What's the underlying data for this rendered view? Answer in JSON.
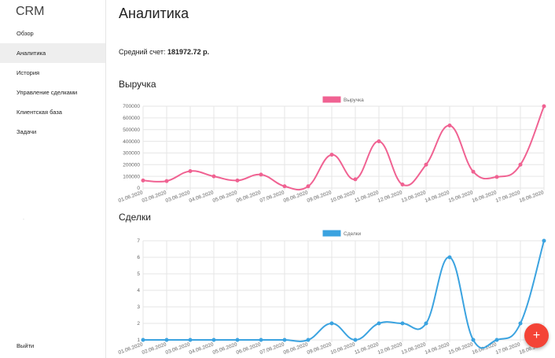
{
  "app": {
    "brand": "CRM"
  },
  "sidebar": {
    "items": [
      {
        "label": "Обзор",
        "active": false
      },
      {
        "label": "Аналитика",
        "active": true
      },
      {
        "label": "История",
        "active": false
      },
      {
        "label": "Управление сделками",
        "active": false
      },
      {
        "label": "Клиентская база",
        "active": false
      },
      {
        "label": "Задачи",
        "active": false
      }
    ],
    "logout_label": "Выйти"
  },
  "main": {
    "title": "Аналитика",
    "avg_label": "Средний счет:",
    "avg_value": "181972.72 р.",
    "revenue_title": "Выручка",
    "deals_title": "Сделки"
  },
  "fab": {
    "label": "+"
  },
  "colors": {
    "revenue": "#f06292",
    "deals": "#3ba3e0",
    "fab": "#f44336"
  },
  "chart_data": [
    {
      "type": "line",
      "categories": [
        "01.06.2020",
        "02.06.2020",
        "03.06.2020",
        "04.06.2020",
        "05.06.2020",
        "06.06.2020",
        "07.06.2020",
        "08.06.2020",
        "09.06.2020",
        "10.06.2020",
        "11.06.2020",
        "12.06.2020",
        "13.06.2020",
        "14.06.2020",
        "15.06.2020",
        "16.06.2020",
        "17.06.2020",
        "18.06.2020"
      ],
      "series": [
        {
          "name": "Выручка",
          "values": [
            65000,
            60000,
            145000,
            100000,
            65000,
            115000,
            15000,
            15000,
            285000,
            75000,
            400000,
            30000,
            200000,
            535000,
            140000,
            95000,
            200000,
            700000
          ]
        }
      ],
      "ylim": [
        0,
        700000
      ],
      "yticks": [
        0,
        100000,
        200000,
        300000,
        400000,
        500000,
        600000,
        700000
      ],
      "legend": "top-center",
      "grid": true
    },
    {
      "type": "line",
      "categories": [
        "01.06.2020",
        "02.06.2020",
        "03.06.2020",
        "04.06.2020",
        "05.06.2020",
        "06.06.2020",
        "07.06.2020",
        "08.06.2020",
        "09.06.2020",
        "10.06.2020",
        "11.06.2020",
        "12.06.2020",
        "13.06.2020",
        "14.06.2020",
        "15.06.2020",
        "16.06.2020",
        "17.06.2020",
        "18.06.2020"
      ],
      "series": [
        {
          "name": "Сделки",
          "values": [
            1,
            1,
            1,
            1,
            1,
            1,
            1,
            1,
            2,
            1,
            2,
            2,
            2,
            6,
            1,
            1,
            2,
            7
          ]
        }
      ],
      "ylim": [
        1,
        7
      ],
      "yticks": [
        1,
        2,
        3,
        4,
        5,
        6,
        7
      ],
      "legend": "top-center",
      "grid": true
    }
  ]
}
